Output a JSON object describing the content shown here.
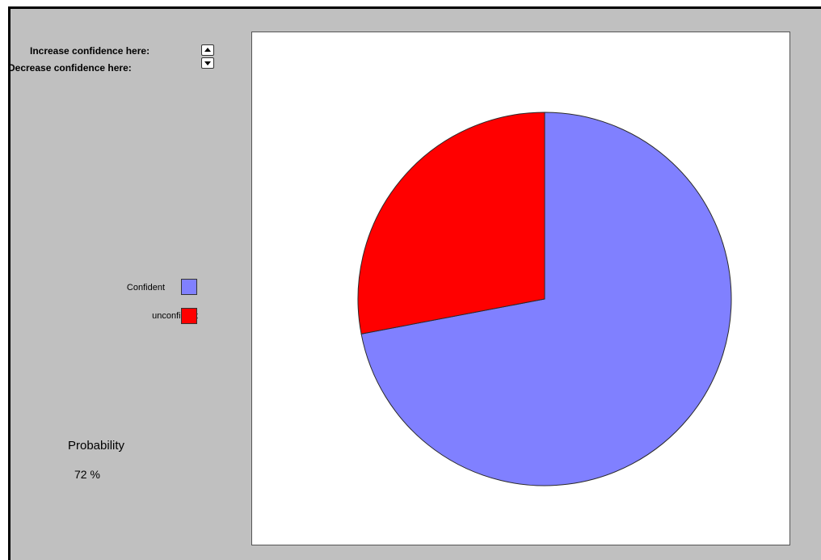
{
  "controls": {
    "increase_label": "Increase confidence here:",
    "decrease_label": "Decrease confidence here:",
    "increase_icon": "triangle-up-icon",
    "decrease_icon": "triangle-down-icon"
  },
  "legend": {
    "items": [
      {
        "label": "Confident",
        "color": "#8080ff"
      },
      {
        "label": "unconfident",
        "color": "#ff0000"
      }
    ]
  },
  "probability": {
    "title": "Probability",
    "value": "72 %"
  },
  "chart_data": {
    "type": "pie",
    "title": "",
    "slices": [
      {
        "label": "Confident",
        "value": 72,
        "color": "#8080ff"
      },
      {
        "label": "unconfident",
        "value": 28,
        "color": "#ff0000"
      }
    ],
    "start": "12 o'clock",
    "direction": "clockwise"
  }
}
